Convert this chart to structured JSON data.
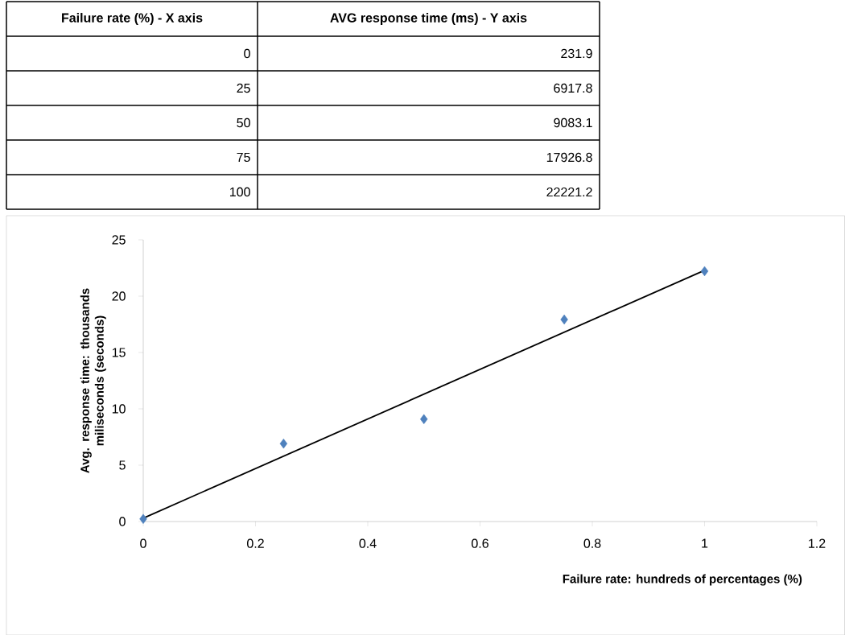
{
  "chart_data": {
    "type": "scatter",
    "xlabel": "Failure rate: hundreds of percentages (%)",
    "ylabel": "Avg. response time: thousands miliseconds (seconds)",
    "x": [
      0,
      0.25,
      0.5,
      0.75,
      1
    ],
    "series": [
      {
        "color": "#4f81bd",
        "marker": "diamond",
        "values": [
          0.2319,
          6.9178,
          9.0831,
          17.9268,
          22.2212
        ]
      },
      {
        "type": "line",
        "color": "#000000",
        "marker": "none",
        "x": [
          0,
          1
        ],
        "values": [
          0.3,
          22.3
        ]
      }
    ],
    "annotations": [
      "Failure rate (%) - X axis",
      "AVG response time (ms) - Y axis",
      "0",
      "231.9",
      "25",
      "6917.8",
      "50",
      "9083.1",
      "75",
      "17926.8",
      "100",
      "22221.2"
    ],
    "xlim": [
      0,
      1.2
    ],
    "ylim": [
      0,
      25
    ],
    "xticks": [
      0,
      0.2,
      0.4,
      0.6,
      0.8,
      1,
      1.2
    ],
    "yticks": [
      0,
      5,
      10,
      15,
      20,
      25
    ]
  }
}
